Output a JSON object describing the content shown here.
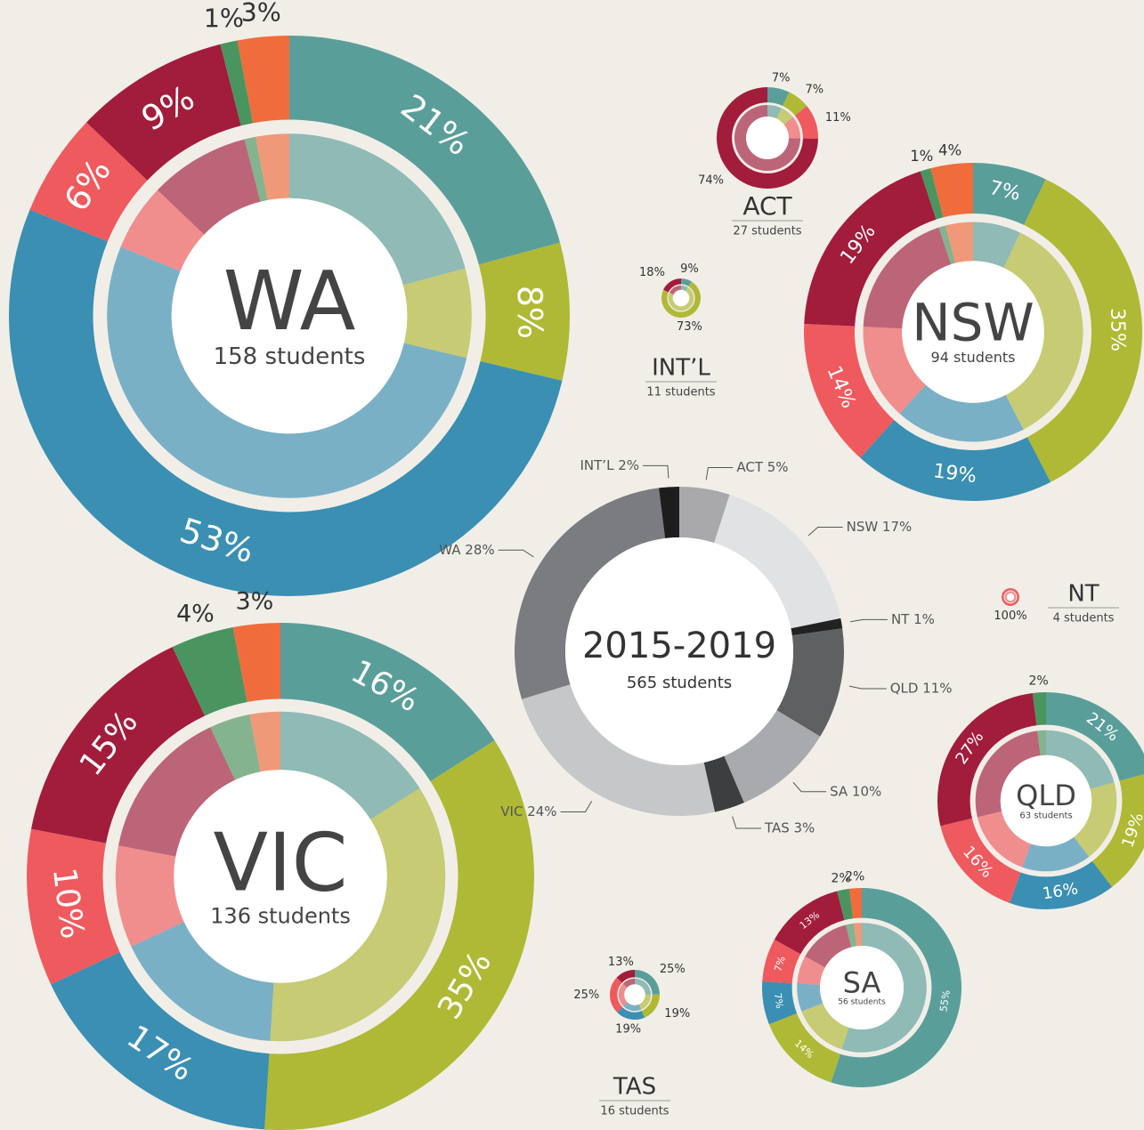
{
  "chart_data": [
    {
      "type": "donut",
      "title": "WA",
      "subtitle": "158 students",
      "values": [
        21,
        8,
        53,
        6,
        9,
        1,
        3
      ],
      "value_labels": [
        "21%",
        "8%",
        "53%",
        "6%",
        "9%",
        "1%",
        "3%"
      ],
      "colors": [
        "#5a9e9a",
        "#afb935",
        "#3a8fb3",
        "#ef5a5e",
        "#a21c3c",
        "#4a9460",
        "#f06c3c"
      ]
    },
    {
      "type": "donut",
      "title": "NSW",
      "subtitle": "94 students",
      "values": [
        7,
        35,
        19,
        14,
        19,
        1,
        4
      ],
      "value_labels": [
        "7%",
        "35%",
        "19%",
        "14%",
        "19%",
        "1%",
        "4%"
      ],
      "colors": [
        "#5a9e9a",
        "#afb935",
        "#3a8fb3",
        "#ef5a5e",
        "#a21c3c",
        "#4a9460",
        "#f06c3c"
      ]
    },
    {
      "type": "donut",
      "title": "VIC",
      "subtitle": "136 students",
      "values": [
        16,
        35,
        17,
        10,
        15,
        4,
        3
      ],
      "value_labels": [
        "16%",
        "35%",
        "17%",
        "10%",
        "15%",
        "4%",
        "3%"
      ],
      "colors": [
        "#5a9e9a",
        "#afb935",
        "#3a8fb3",
        "#ef5a5e",
        "#a21c3c",
        "#4a9460",
        "#f06c3c"
      ]
    },
    {
      "type": "donut",
      "title": "QLD",
      "subtitle": "63 students",
      "values": [
        21,
        19,
        16,
        16,
        27,
        2
      ],
      "value_labels": [
        "21%",
        "19%",
        "16%",
        "16%",
        "27%",
        "2%"
      ],
      "colors": [
        "#5a9e9a",
        "#afb935",
        "#3a8fb3",
        "#ef5a5e",
        "#a21c3c",
        "#4a9460"
      ]
    },
    {
      "type": "donut",
      "title": "SA",
      "subtitle": "56 students",
      "values": [
        55,
        14,
        7,
        7,
        13,
        2,
        2
      ],
      "value_labels": [
        "55%",
        "14%",
        "7%",
        "7%",
        "13%",
        "2%",
        "2%"
      ],
      "colors": [
        "#5a9e9a",
        "#afb935",
        "#3a8fb3",
        "#ef5a5e",
        "#a21c3c",
        "#4a9460",
        "#f06c3c"
      ]
    },
    {
      "type": "donut",
      "title": "ACT",
      "subtitle": "27 students",
      "values": [
        7,
        7,
        11,
        74
      ],
      "value_labels": [
        "7%",
        "7%",
        "11%",
        "74%"
      ],
      "colors": [
        "#5a9e9a",
        "#afb935",
        "#ef5a5e",
        "#a21c3c"
      ]
    },
    {
      "type": "donut",
      "title": "INT’L",
      "subtitle": "11 students",
      "values": [
        9,
        73,
        18
      ],
      "value_labels": [
        "9%",
        "73%",
        "18%"
      ],
      "colors": [
        "#5a9e9a",
        "#afb935",
        "#a21c3c"
      ]
    },
    {
      "type": "donut",
      "title": "TAS",
      "subtitle": "16 students",
      "values": [
        25,
        19,
        19,
        25,
        13
      ],
      "value_labels": [
        "25%",
        "19%",
        "19%",
        "25%",
        "13%"
      ],
      "colors": [
        "#5a9e9a",
        "#afb935",
        "#3a8fb3",
        "#ef5a5e",
        "#a21c3c"
      ]
    },
    {
      "type": "donut",
      "title": "NT",
      "subtitle": "4 students",
      "values": [
        100
      ],
      "value_labels": [
        "100%"
      ],
      "colors": [
        "#ef5a5e"
      ]
    },
    {
      "type": "summary",
      "title": "2015-2019",
      "subtitle": "565 students",
      "values": [
        5,
        17,
        1,
        11,
        10,
        3,
        24,
        28,
        2
      ],
      "value_labels": [
        "ACT 5%",
        "NSW 17%",
        "NT 1%",
        "QLD 11%",
        "SA 10%",
        "TAS 3%",
        "VIC 24%",
        "WA 28%",
        "INT’L 2%"
      ],
      "colors": [
        "#a9a9ab",
        "#e1e2e3",
        "#222222",
        "#5f6062",
        "#a9aaad",
        "#3d3e40",
        "#c6c7c9",
        "#7b7c80",
        "#1d1d1d"
      ]
    }
  ]
}
